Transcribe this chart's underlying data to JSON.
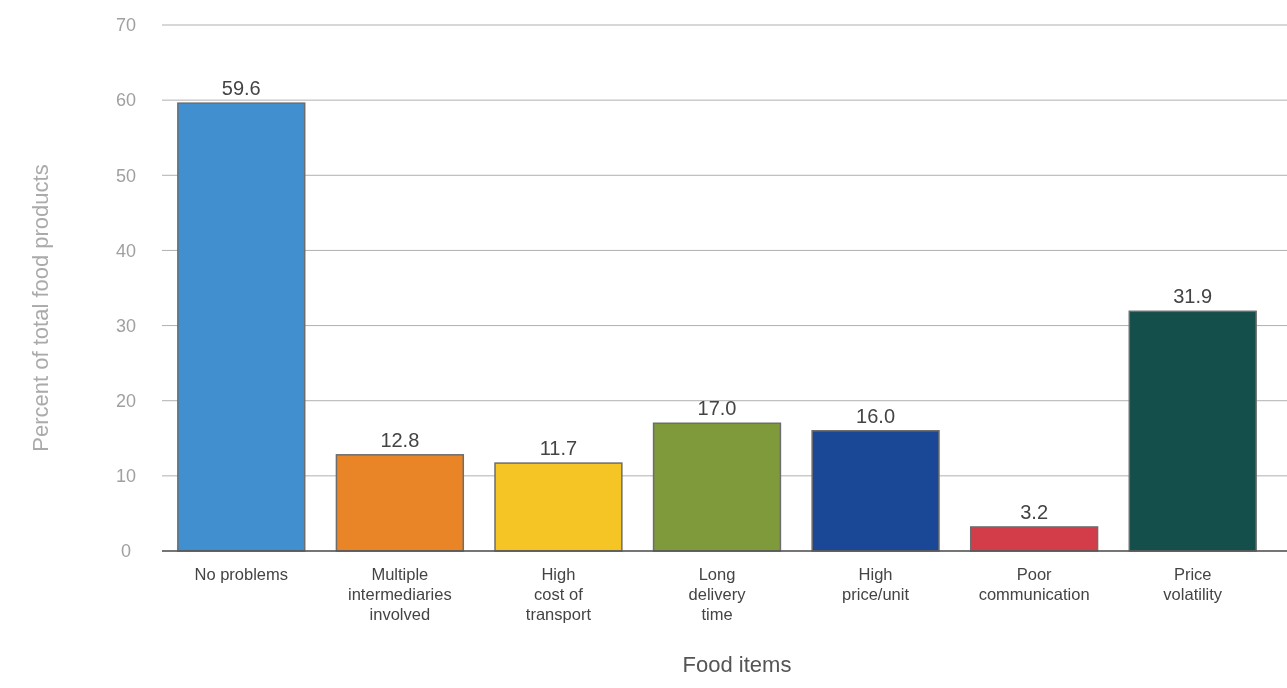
{
  "chart_data": {
    "type": "bar",
    "xlabel": "Food items",
    "ylabel": "Percent of total food products",
    "categories": [
      "No problems",
      "Multiple\nintermediaries\ninvolved",
      "High\ncost of\ntransport",
      "Long\ndelivery\ntime",
      "High\nprice/unit",
      "Poor\ncommunication",
      "Price\nvolatility"
    ],
    "values": [
      59.6,
      12.8,
      11.7,
      17.0,
      16.0,
      3.2,
      31.9
    ],
    "colors": [
      "#428fcf",
      "#e98526",
      "#f4c524",
      "#7f9a3a",
      "#1b4797",
      "#d33c49",
      "#154f4b"
    ],
    "value_labels": [
      "59.6",
      "12.8",
      "11.7",
      "17.0",
      "16.0",
      "3.2",
      "31.9"
    ],
    "ylim": [
      0,
      70
    ],
    "yticks": [
      0,
      10,
      20,
      30,
      40,
      50,
      60,
      70
    ],
    "grid": "y"
  }
}
